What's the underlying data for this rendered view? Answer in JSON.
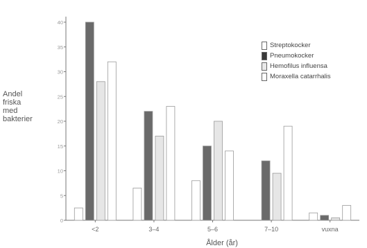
{
  "chart_data": {
    "type": "bar",
    "xlabel": "Ålder (år)",
    "ylabel_lines": [
      "Andel",
      "friska",
      "med",
      "bakterier"
    ],
    "categories": [
      "<2",
      "3–4",
      "5–6",
      "7–10",
      "vuxna"
    ],
    "ylim": [
      0,
      40
    ],
    "yticks": [
      0,
      5,
      10,
      15,
      20,
      25,
      30,
      35,
      40
    ],
    "grid": false,
    "legend_position": "top-right",
    "series": [
      {
        "name": "Streptokocker",
        "fill": "#ffffff",
        "values": [
          2.5,
          6.5,
          8,
          0,
          1.5
        ]
      },
      {
        "name": "Pneumokocker",
        "fill": "#6a6a6a",
        "values": [
          40,
          22,
          15,
          12,
          1
        ]
      },
      {
        "name": "Hemofilus influensa",
        "fill": "#e6e6e6",
        "values": [
          28,
          17,
          20,
          9.5,
          0.5
        ]
      },
      {
        "name": "Moraxella catarrhalis",
        "fill": "#ffffff",
        "values": [
          32,
          23,
          14,
          19,
          3
        ]
      }
    ]
  }
}
